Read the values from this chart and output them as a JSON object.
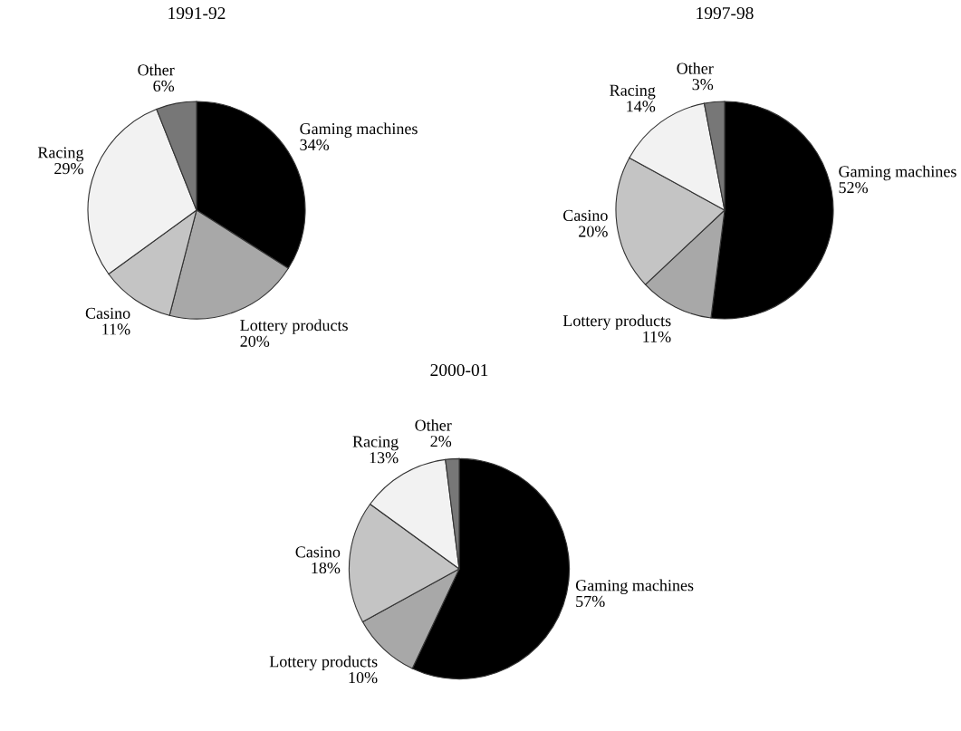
{
  "chart_data": [
    {
      "type": "pie",
      "title": "1991-92",
      "categories": [
        "Gaming machines",
        "Lottery products",
        "Casino",
        "Racing",
        "Other"
      ],
      "values": [
        34,
        20,
        11,
        29,
        6
      ],
      "value_labels": [
        "34%",
        "20%",
        "11%",
        "29%",
        "6%"
      ],
      "colors": [
        "#000000",
        "#a8a8a8",
        "#c4c4c4",
        "#f2f2f2",
        "#777777"
      ],
      "legend": false
    },
    {
      "type": "pie",
      "title": "1997-98",
      "categories": [
        "Gaming machines",
        "Lottery products",
        "Casino",
        "Racing",
        "Other"
      ],
      "values": [
        52,
        11,
        20,
        14,
        3
      ],
      "value_labels": [
        "52%",
        "11%",
        "20%",
        "14%",
        "3%"
      ],
      "colors": [
        "#000000",
        "#a8a8a8",
        "#c4c4c4",
        "#f2f2f2",
        "#777777"
      ],
      "legend": false
    },
    {
      "type": "pie",
      "title": "2000-01",
      "categories": [
        "Gaming machines",
        "Lottery products",
        "Casino",
        "Racing",
        "Other"
      ],
      "values": [
        57,
        10,
        18,
        13,
        2
      ],
      "value_labels": [
        "57%",
        "10%",
        "18%",
        "13%",
        "2%"
      ],
      "colors": [
        "#000000",
        "#a8a8a8",
        "#c4c4c4",
        "#f2f2f2",
        "#777777"
      ],
      "legend": false
    }
  ]
}
